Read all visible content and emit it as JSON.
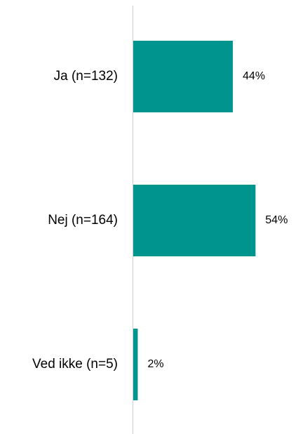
{
  "chart_data": {
    "type": "bar",
    "orientation": "horizontal",
    "categories": [
      "Ja (n=132)",
      "Nej (n=164)",
      "Ved ikke (n=5)"
    ],
    "values": [
      44,
      54,
      2
    ],
    "value_labels": [
      "44%",
      "54%",
      "2%"
    ],
    "color": "#00948f",
    "xlim": [
      0,
      100
    ]
  }
}
